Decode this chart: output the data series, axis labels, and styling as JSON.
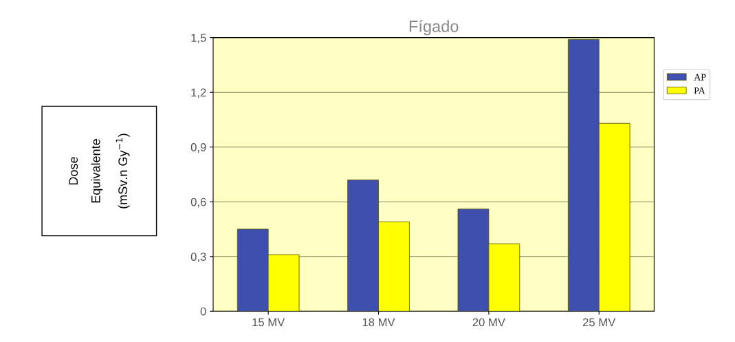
{
  "chart_data": {
    "type": "bar",
    "title": "Fígado",
    "ylabel": "Dose\nEquivalente\n(mSv.n Gy$^{−1}$)",
    "categories": [
      "15 MV",
      "18 MV",
      "20 MV",
      "25 MV"
    ],
    "series": [
      {
        "name": "AP",
        "color": "#3f4fb0",
        "values": [
          0.45,
          0.72,
          0.56,
          1.49
        ]
      },
      {
        "name": "PA",
        "color": "#ffff00",
        "values": [
          0.31,
          0.49,
          0.37,
          1.03
        ]
      }
    ],
    "ylim": [
      0,
      1.5
    ],
    "yticks": [
      0,
      {
        "value": 0.3,
        "label": "0,3"
      },
      {
        "value": 0.6,
        "label": "0,6"
      },
      {
        "value": 0.9,
        "label": "0,9"
      },
      {
        "value": 1.2,
        "label": "1,2"
      },
      {
        "value": 1.5,
        "label": "1,5"
      }
    ],
    "grid": "y",
    "legend": "top right"
  }
}
